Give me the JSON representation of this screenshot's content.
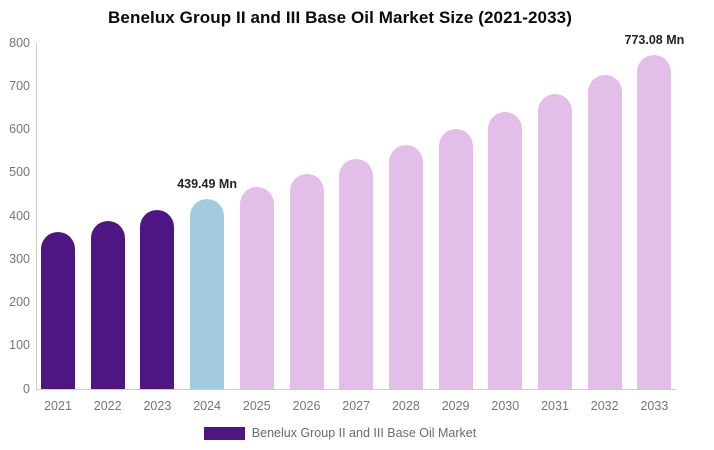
{
  "title": "Benelux Group II and III Base Oil Market Size (2021-2033)",
  "chart_data": {
    "type": "bar",
    "title": "Benelux Group II and III Base Oil Market Size (2021-2033)",
    "categories": [
      "2021",
      "2022",
      "2023",
      "2024",
      "2025",
      "2026",
      "2027",
      "2028",
      "2029",
      "2030",
      "2031",
      "2032",
      "2033"
    ],
    "series": [
      {
        "name": "Benelux Group II and III Base Oil Market",
        "values": [
          364,
          388,
          413,
          439.49,
          468,
          498,
          531,
          565,
          602,
          641,
          682,
          726,
          773.08
        ]
      }
    ],
    "bar_colors": [
      "#4E1583",
      "#4E1583",
      "#4E1583",
      "#A3CCE0",
      "#E3BEE8",
      "#E3BEE8",
      "#E3BEE8",
      "#E3BEE8",
      "#E3BEE8",
      "#E3BEE8",
      "#E3BEE8",
      "#E3BEE8",
      "#E3BEE8"
    ],
    "annotations": [
      {
        "category": "2024",
        "index": 3,
        "text": "439.49 Mn"
      },
      {
        "category": "2033",
        "index": 12,
        "text": "773.08 Mn"
      }
    ],
    "xlabel": "",
    "ylabel": "",
    "ylim": [
      0,
      800
    ],
    "yticks": [
      0,
      100,
      200,
      300,
      400,
      500,
      600,
      700,
      800
    ],
    "grid": false,
    "legend_position": "bottom"
  },
  "legend": {
    "label": "Benelux Group II and III Base Oil Market",
    "swatch_color": "#4E1583"
  },
  "colors": {
    "bar_historical": "#4E1583",
    "bar_current": "#A3CCE0",
    "bar_forecast": "#E3BEE8",
    "axis_line": "#cccccc",
    "tick_text": "#757575",
    "annotation_text": "#222222",
    "legend_text": "#6b6b6b",
    "title_text": "#0a0a0a"
  }
}
